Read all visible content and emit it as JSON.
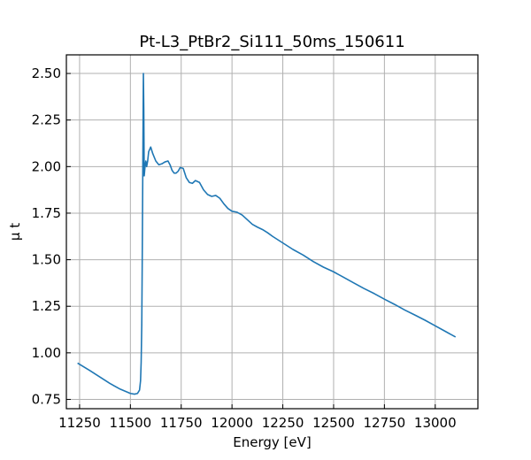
{
  "chart_data": {
    "type": "line",
    "title": "Pt-L3_PtBr2_Si111_50ms_150611",
    "xlabel": "Energy [eV]",
    "ylabel": "μ t",
    "xlim": [
      11185,
      13210
    ],
    "ylim": [
      0.7,
      2.6
    ],
    "xticks": [
      11250,
      11500,
      11750,
      12000,
      12250,
      12500,
      12750,
      13000
    ],
    "yticks": [
      0.75,
      1.0,
      1.25,
      1.5,
      1.75,
      2.0,
      2.25,
      2.5
    ],
    "xtick_labels": [
      "11250",
      "11500",
      "11750",
      "12000",
      "12250",
      "12500",
      "12750",
      "13000"
    ],
    "ytick_labels": [
      "0.75",
      "1.00",
      "1.25",
      "1.50",
      "1.75",
      "2.00",
      "2.25",
      "2.50"
    ],
    "grid": true,
    "color": "#1f77b4",
    "series": [
      {
        "x": [
          11240,
          11300,
          11350,
          11400,
          11450,
          11500,
          11520,
          11535,
          11545,
          11550,
          11553,
          11556,
          11558,
          11560,
          11562,
          11564,
          11566,
          11568,
          11572,
          11576,
          11580,
          11585,
          11590,
          11600,
          11610,
          11625,
          11640,
          11655,
          11670,
          11685,
          11695,
          11705,
          11715,
          11725,
          11735,
          11745,
          11760,
          11775,
          11790,
          11805,
          11820,
          11840,
          11860,
          11880,
          11900,
          11920,
          11940,
          11960,
          11980,
          12000,
          12025,
          12050,
          12075,
          12100,
          12125,
          12150,
          12175,
          12200,
          12250,
          12300,
          12350,
          12400,
          12450,
          12500,
          12550,
          12600,
          12650,
          12700,
          12750,
          12800,
          12850,
          12900,
          12950,
          13000,
          13050,
          13100
        ],
        "y": [
          0.945,
          0.905,
          0.87,
          0.835,
          0.805,
          0.782,
          0.778,
          0.782,
          0.8,
          0.85,
          0.95,
          1.15,
          1.45,
          1.8,
          2.15,
          2.5,
          2.3,
          1.95,
          2.0,
          2.03,
          2.0,
          2.03,
          2.08,
          2.105,
          2.07,
          2.03,
          2.01,
          2.015,
          2.025,
          2.03,
          2.01,
          1.98,
          1.965,
          1.965,
          1.975,
          1.995,
          1.99,
          1.94,
          1.915,
          1.91,
          1.925,
          1.915,
          1.875,
          1.85,
          1.84,
          1.845,
          1.83,
          1.8,
          1.775,
          1.76,
          1.755,
          1.74,
          1.715,
          1.69,
          1.675,
          1.662,
          1.645,
          1.625,
          1.59,
          1.555,
          1.525,
          1.49,
          1.46,
          1.435,
          1.405,
          1.375,
          1.345,
          1.318,
          1.288,
          1.26,
          1.23,
          1.203,
          1.175,
          1.145,
          1.115,
          1.085
        ]
      }
    ]
  }
}
